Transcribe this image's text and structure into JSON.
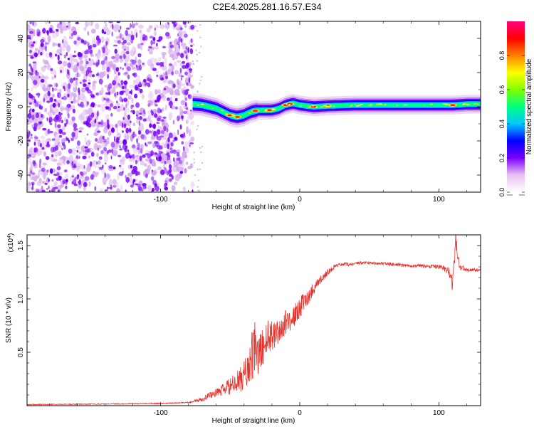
{
  "figure": {
    "title": "C2E4.2025.281.16.57.E34"
  },
  "chart_data": [
    {
      "type": "heatmap",
      "name": "spectrogram",
      "xlabel": "Height of straight line (km)",
      "ylabel": "Frequency (Hz)",
      "xlim": [
        -196,
        130
      ],
      "ylim": [
        -50,
        50
      ],
      "xticks": [
        -100,
        0,
        100
      ],
      "yticks": [
        -40,
        -20,
        0,
        20,
        40
      ],
      "noise_region_x": [
        -196,
        -77
      ],
      "ridge": {
        "x": [
          -77,
          -70,
          -60,
          -55,
          -50,
          -45,
          -40,
          -35,
          -30,
          -25,
          -20,
          -15,
          -10,
          -5,
          0,
          10,
          20,
          40,
          60,
          80,
          100,
          110,
          120,
          130
        ],
        "frequency": [
          1.5,
          1,
          -1,
          -3,
          -5,
          -6,
          -5,
          -3,
          -2,
          -2,
          -2,
          -1,
          1,
          2,
          1,
          0,
          0.5,
          1,
          1,
          1,
          1,
          1,
          1.5,
          1.5
        ],
        "peaks_x": [
          -50,
          -45,
          -32,
          -22,
          -10,
          -7,
          10,
          20,
          110
        ]
      },
      "colorbar": {
        "label": "Normalized spectral amplitude",
        "ticks": [
          "0.0",
          "0.2",
          "0.4",
          "0.6",
          "0.8"
        ],
        "tick_values": [
          0.0,
          0.2,
          0.4,
          0.6,
          0.8
        ],
        "range": [
          0,
          1
        ],
        "stops": [
          "#ffffff",
          "#e9c2f2",
          "#7a00ff",
          "#0000ff",
          "#00c8ff",
          "#00ff80",
          "#80ff00",
          "#ffff00",
          "#ff8000",
          "#ff0000",
          "#ff007f"
        ]
      }
    },
    {
      "type": "line",
      "name": "snr",
      "xlabel": "Height of straight line (km)",
      "ylabel": "SNR (10 * v/v)",
      "scale_label": "(x10",
      "scale_exponent": "4",
      "scale_close": ")",
      "xlim": [
        -196,
        130
      ],
      "ylim": [
        0,
        1.6
      ],
      "xticks": [
        -100,
        0,
        100
      ],
      "yticks": [
        0.5,
        1.0,
        1.5
      ],
      "ytick_labels": [
        "0.5",
        "1.0",
        "1.5"
      ],
      "color": "#e8332b",
      "series": [
        {
          "name": "SNR",
          "x": [
            -196,
            -100,
            -80,
            -70,
            -65,
            -60,
            -55,
            -50,
            -45,
            -40,
            -35,
            -32,
            -30,
            -25,
            -20,
            -15,
            -10,
            -5,
            0,
            5,
            10,
            15,
            20,
            25,
            30,
            40,
            50,
            60,
            70,
            80,
            90,
            100,
            105,
            108,
            110,
            112,
            115,
            120,
            130
          ],
          "values": [
            0.01,
            0.02,
            0.03,
            0.06,
            0.1,
            0.12,
            0.15,
            0.18,
            0.22,
            0.28,
            0.42,
            0.55,
            0.45,
            0.6,
            0.68,
            0.7,
            0.78,
            0.82,
            0.92,
            1.0,
            1.1,
            1.18,
            1.25,
            1.3,
            1.32,
            1.33,
            1.34,
            1.33,
            1.32,
            1.31,
            1.31,
            1.3,
            1.28,
            1.24,
            1.12,
            1.55,
            1.3,
            1.27,
            1.27
          ],
          "noise_amplitude": [
            0.004,
            0.005,
            0.006,
            0.02,
            0.03,
            0.04,
            0.06,
            0.08,
            0.1,
            0.14,
            0.24,
            0.25,
            0.2,
            0.18,
            0.16,
            0.14,
            0.12,
            0.1,
            0.1,
            0.08,
            0.06,
            0.04,
            0.03,
            0.02,
            0.02,
            0.015,
            0.015,
            0.015,
            0.015,
            0.015,
            0.015,
            0.02,
            0.03,
            0.05,
            0.08,
            0.08,
            0.03,
            0.02,
            0.015
          ]
        }
      ]
    }
  ]
}
